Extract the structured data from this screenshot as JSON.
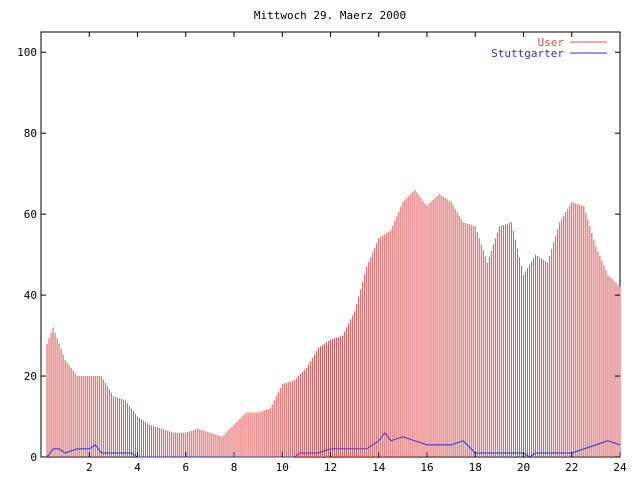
{
  "chart_data": {
    "type": "bar",
    "title": "Mittwoch 29. Maerz 2000",
    "xlabel": "",
    "ylabel": "",
    "xlim": [
      0,
      24
    ],
    "ylim": [
      0,
      105
    ],
    "x_ticks": [
      2,
      4,
      6,
      8,
      10,
      12,
      14,
      16,
      18,
      20,
      22,
      24
    ],
    "x_tick_labels": [
      "2",
      "4",
      "6",
      "8",
      "10",
      "12",
      "14",
      "16",
      "18",
      "20",
      "22",
      "24"
    ],
    "y_ticks": [
      0,
      20,
      40,
      60,
      80,
      100
    ],
    "y_tick_labels": [
      "0",
      "20",
      "40",
      "60",
      "80",
      "100"
    ],
    "grid": false,
    "legend_position": "top-right",
    "series": [
      {
        "name": "User",
        "style": "impulses",
        "color": "#e05050",
        "x": [
          0.25,
          0.5,
          1,
          1.5,
          2,
          2.5,
          3,
          3.5,
          4,
          4.5,
          5,
          5.5,
          6,
          6.5,
          7,
          7.5,
          8,
          8.5,
          9,
          9.5,
          10,
          10.5,
          11,
          11.5,
          12,
          12.5,
          13,
          13.5,
          14,
          14.5,
          15,
          15.5,
          16,
          16.5,
          17,
          17.5,
          18,
          18.5,
          19,
          19.5,
          20,
          20.5,
          21,
          21.5,
          22,
          22.5,
          23,
          23.5,
          24
        ],
        "values": [
          28,
          32,
          24,
          20,
          20,
          20,
          15,
          14,
          10,
          8,
          7,
          6,
          6,
          7,
          6,
          5,
          8,
          11,
          11,
          12,
          18,
          19,
          22,
          27,
          29,
          30,
          36,
          47,
          54,
          56,
          63,
          66,
          62,
          65,
          63,
          58,
          57,
          48,
          57,
          58,
          45,
          50,
          48,
          58,
          63,
          62,
          52,
          45,
          42
        ]
      },
      {
        "name": "Stuttgarter",
        "style": "line",
        "color": "#3030e0",
        "x": [
          0.25,
          0.5,
          0.75,
          1,
          1.5,
          2,
          2.25,
          2.5,
          3,
          3.5,
          3.75,
          4,
          10.5,
          10.75,
          11,
          11.5,
          12,
          12.5,
          13,
          13.5,
          14,
          14.25,
          14.5,
          15,
          15.5,
          16,
          16.5,
          17,
          17.5,
          18,
          19,
          20,
          20.25,
          20.5,
          21,
          21.5,
          22,
          22.5,
          23,
          23.5,
          24
        ],
        "values": [
          0,
          2,
          2,
          1,
          2,
          2,
          3,
          1,
          1,
          1,
          1,
          0,
          0,
          1,
          1,
          1,
          2,
          2,
          2,
          2,
          4,
          6,
          4,
          5,
          4,
          3,
          3,
          3,
          4,
          1,
          1,
          1,
          0,
          1,
          1,
          1,
          1,
          2,
          3,
          4,
          3
        ]
      }
    ]
  }
}
